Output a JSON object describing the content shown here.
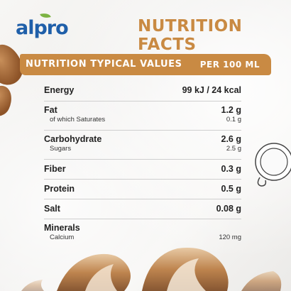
{
  "brand": {
    "name": "alpro"
  },
  "headline": "NUTRITION FACTS",
  "table_header": {
    "left": "NUTRITION TYPICAL VALUES",
    "right": "PER 100 ML"
  },
  "rows": [
    {
      "label": "Energy",
      "value": "99 kJ / 24 kcal"
    },
    {
      "label": "Fat",
      "value": "1.2 g",
      "sub_label": "of which Saturates",
      "sub_value": "0.1 g"
    },
    {
      "label": "Carbohydrate",
      "value": "2.6 g",
      "sub_label": "Sugars",
      "sub_value": "2.5 g"
    },
    {
      "label": "Fiber",
      "value": "0.3 g"
    },
    {
      "label": "Protein",
      "value": "0.5 g"
    },
    {
      "label": "Salt",
      "value": "0.08 g"
    },
    {
      "label": "Minerals",
      "value": "",
      "sub_label": "Calcium",
      "sub_value": "120 mg"
    }
  ],
  "colors": {
    "accent": "#c98a43",
    "brand_blue": "#1f5fa9",
    "leaf_green": "#7cb342",
    "text": "#222222"
  },
  "icons": [
    "almond-icon",
    "coffee-cup-icon",
    "milk-swirl-decoration"
  ]
}
